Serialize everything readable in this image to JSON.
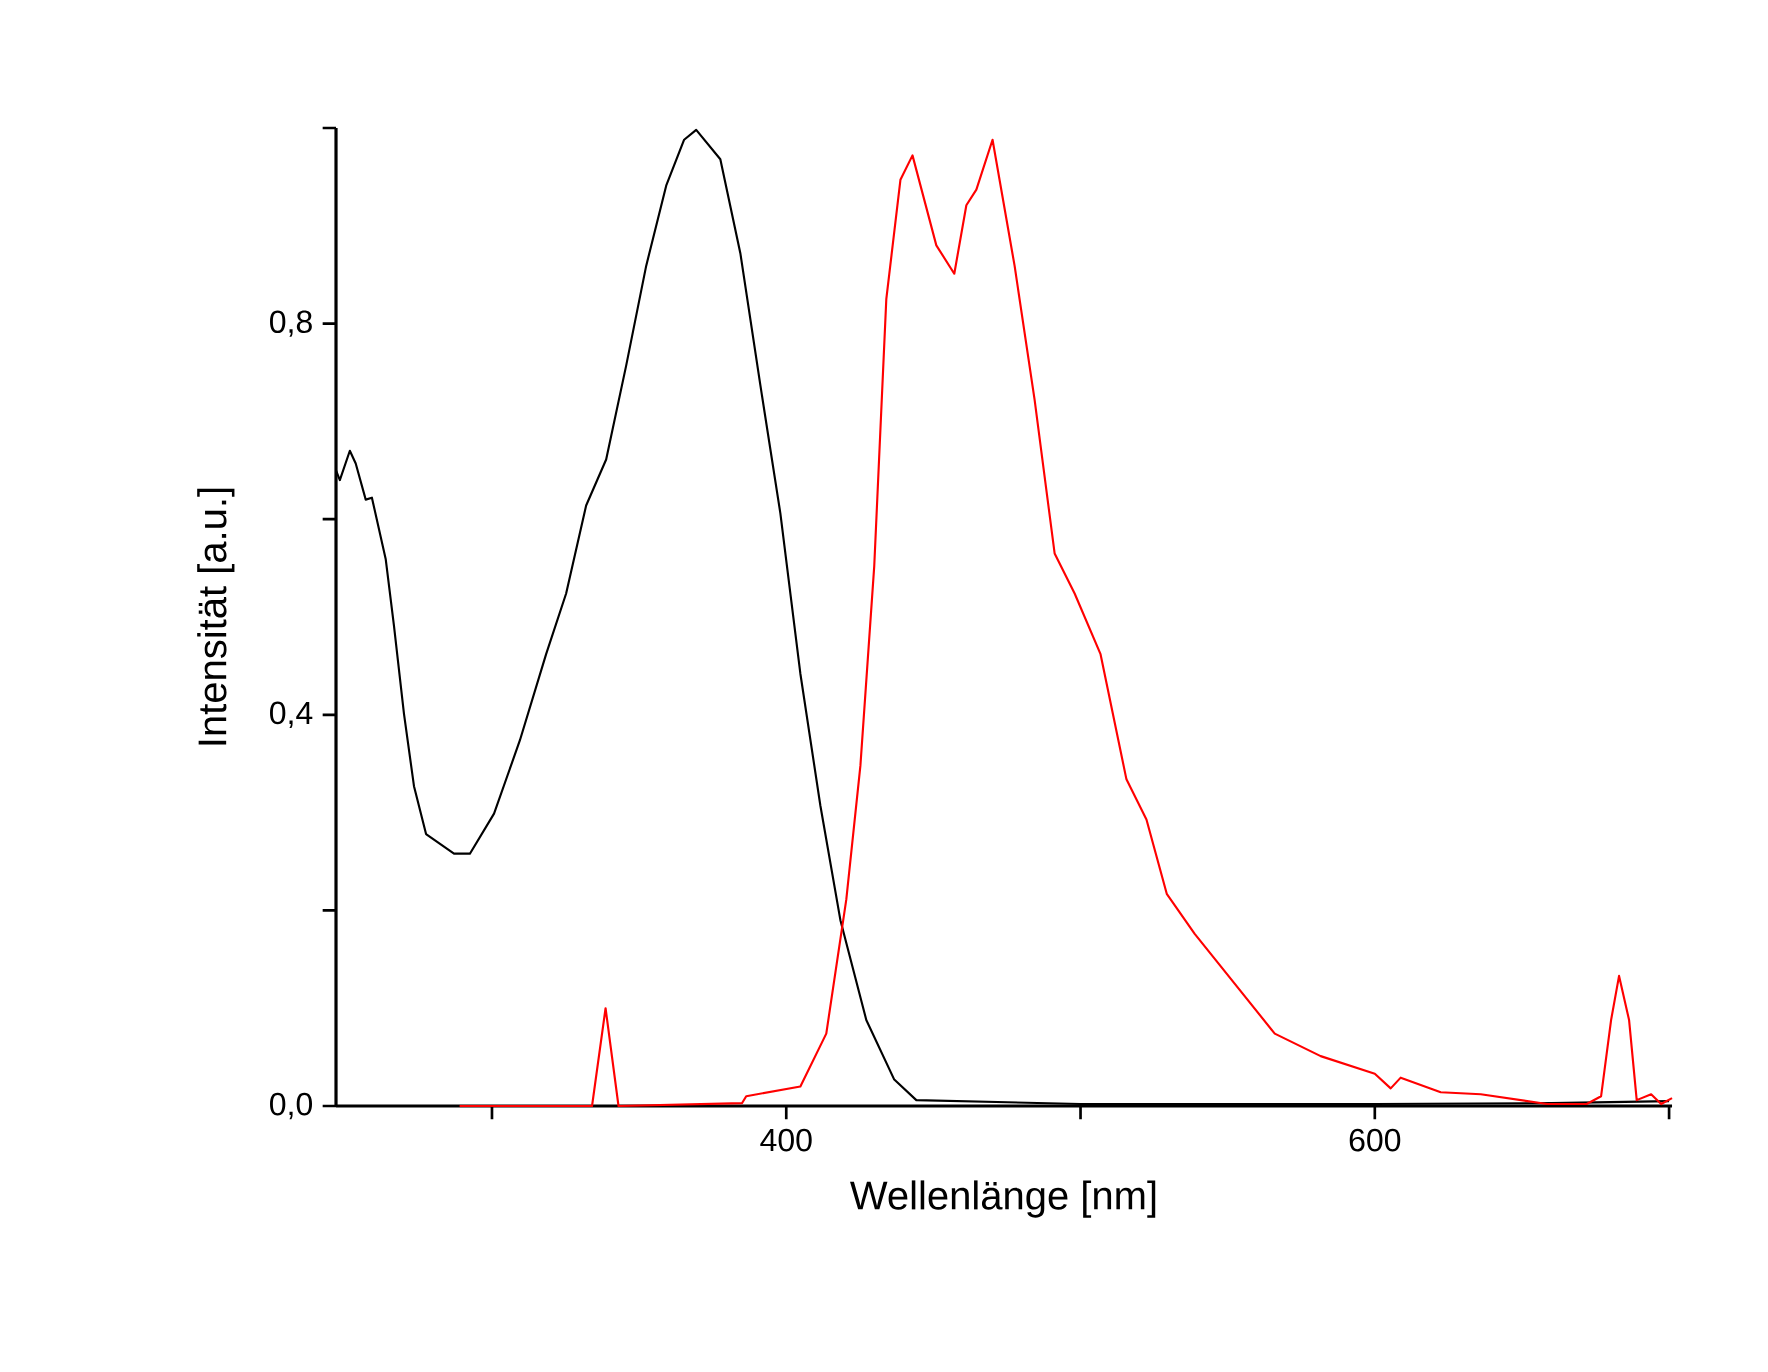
{
  "chart_data": {
    "type": "line",
    "xlabel": "Wellenlänge [nm]",
    "ylabel": "Intensität [a.u.]",
    "xlim": [
      247,
      701
    ],
    "ylim": [
      0,
      1.0
    ],
    "xticks": [
      {
        "value": 300,
        "label": null
      },
      {
        "value": 400,
        "label": "400"
      },
      {
        "value": 500,
        "label": null
      },
      {
        "value": 600,
        "label": "600"
      },
      {
        "value": 700,
        "label": null
      }
    ],
    "yticks": [
      {
        "value": 0,
        "label": "0,0"
      },
      {
        "value": 0.2,
        "label": null
      },
      {
        "value": 0.4,
        "label": "0,4"
      },
      {
        "value": 0.6,
        "label": null
      },
      {
        "value": 0.8,
        "label": "0,8"
      },
      {
        "value": 1.0,
        "label": null
      }
    ],
    "series": [
      {
        "color": "#000000",
        "x": [
          247,
          248.3,
          251.7,
          253.7,
          257.1,
          259.2,
          263.9,
          266.7,
          270.1,
          273.5,
          277.6,
          287.1,
          292.5,
          300.7,
          309.5,
          318.4,
          325.2,
          332.0,
          338.8,
          345.6,
          352.4,
          359.2,
          365.3,
          369.4,
          377.6,
          384.4,
          391.2,
          398.0,
          404.8,
          411.6,
          418.4,
          427.2,
          436.7,
          444.2,
          500,
          600,
          660,
          700
        ],
        "values": [
          0.65,
          0.64,
          0.67,
          0.657,
          0.62,
          0.622,
          0.559,
          0.491,
          0.401,
          0.327,
          0.278,
          0.258,
          0.258,
          0.299,
          0.374,
          0.462,
          0.524,
          0.614,
          0.661,
          0.757,
          0.859,
          0.941,
          0.988,
          0.998,
          0.968,
          0.872,
          0.737,
          0.606,
          0.442,
          0.307,
          0.19,
          0.088,
          0.027,
          0.006,
          0.002,
          0.002,
          0.003,
          0.005
        ]
      },
      {
        "color": "#ff0000",
        "x": [
          289,
          334,
          338.6,
          343,
          385,
          386.4,
          404.8,
          413.6,
          420.4,
          425.2,
          429.9,
          434,
          438.8,
          442.9,
          451,
          457.1,
          461.2,
          464.6,
          470.1,
          477.6,
          484.4,
          491.2,
          498,
          506.8,
          515.6,
          522.4,
          529.3,
          538.8,
          547.6,
          566,
          581.6,
          600,
          605.4,
          608.8,
          622.4,
          636,
          658.5,
          672,
          676.9,
          680.3,
          683,
          686.4,
          689,
          693.9,
          697.3,
          701
        ],
        "values": [
          0,
          0,
          0.1,
          0,
          0.003,
          0.01,
          0.02,
          0.074,
          0.211,
          0.348,
          0.552,
          0.825,
          0.947,
          0.972,
          0.88,
          0.851,
          0.921,
          0.937,
          0.988,
          0.859,
          0.722,
          0.565,
          0.524,
          0.462,
          0.334,
          0.293,
          0.217,
          0.176,
          0.143,
          0.074,
          0.051,
          0.033,
          0.018,
          0.029,
          0.014,
          0.012,
          0.002,
          0.002,
          0.01,
          0.088,
          0.133,
          0.088,
          0.006,
          0.012,
          0.002,
          0.008
        ]
      }
    ]
  }
}
